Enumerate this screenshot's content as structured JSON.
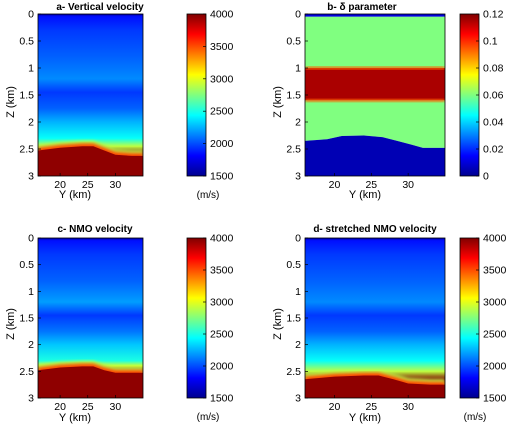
{
  "chart_data": [
    {
      "type": "heatmap",
      "title": "a- Vertical velocity",
      "xlabel": "Y (km)",
      "ylabel": "Z (km)",
      "xlim": [
        16,
        35
      ],
      "ylim": [
        0,
        3
      ],
      "x_ticks": [
        "20",
        "25",
        "30"
      ],
      "y_ticks": [
        "0",
        "0.5",
        "1",
        "1.5",
        "2",
        "2.5",
        "3"
      ],
      "colorbar": {
        "min": 1500,
        "max": 4000,
        "ticks": [
          "4000",
          "3500",
          "3000",
          "2500",
          "2000",
          "1500"
        ],
        "unit": "(m/s)"
      },
      "z_profile": [
        [
          0,
          1550
        ],
        [
          0.05,
          1850
        ],
        [
          0.3,
          1950
        ],
        [
          0.8,
          2050
        ],
        [
          1.2,
          2150
        ],
        [
          1.45,
          1950
        ],
        [
          1.75,
          2050
        ],
        [
          2.0,
          2250
        ],
        [
          2.3,
          2450
        ],
        [
          2.45,
          2900
        ],
        [
          2.6,
          4000
        ],
        [
          3.0,
          4000
        ]
      ],
      "high_velocity_top_km": [
        [
          16,
          2.5
        ],
        [
          20,
          2.45
        ],
        [
          24,
          2.42
        ],
        [
          26,
          2.42
        ],
        [
          28,
          2.5
        ],
        [
          30,
          2.58
        ],
        [
          33,
          2.6
        ],
        [
          35,
          2.6
        ]
      ]
    },
    {
      "type": "heatmap",
      "title": "b- δ parameter",
      "xlabel": "Y (km)",
      "ylabel": "Z (km)",
      "xlim": [
        16,
        35
      ],
      "ylim": [
        0,
        3
      ],
      "x_ticks": [
        "20",
        "25",
        "30"
      ],
      "y_ticks": [
        "0",
        "0.5",
        "1",
        "1.5",
        "2",
        "2.5",
        "3"
      ],
      "colorbar": {
        "min": 0,
        "max": 0.12,
        "ticks": [
          "0.12",
          "0.1",
          "0.08",
          "0.06",
          "0.04",
          "0.02",
          "0"
        ],
        "unit": ""
      },
      "layers": [
        {
          "z_top": 0,
          "z_bottom": 0.05,
          "value": 0.01
        },
        {
          "z_top": 0.05,
          "z_bottom": 1.0,
          "value": 0.06
        },
        {
          "z_top": 1.0,
          "z_bottom": 1.6,
          "value": 0.115
        },
        {
          "z_top": 1.6,
          "z_bottom": "boundary",
          "value": 0.06
        },
        {
          "z_top": "boundary",
          "z_bottom": 3.0,
          "value": 0.005
        }
      ],
      "boundary_km": [
        [
          16,
          2.35
        ],
        [
          19,
          2.32
        ],
        [
          21,
          2.26
        ],
        [
          24,
          2.25
        ],
        [
          26.5,
          2.28
        ],
        [
          28.5,
          2.35
        ],
        [
          30.5,
          2.42
        ],
        [
          32,
          2.48
        ],
        [
          35,
          2.48
        ]
      ]
    },
    {
      "type": "heatmap",
      "title": "c- NMO velocity",
      "xlabel": "Y (km)",
      "ylabel": "Z (km)",
      "xlim": [
        16,
        35
      ],
      "ylim": [
        0,
        3
      ],
      "x_ticks": [
        "20",
        "25",
        "30"
      ],
      "y_ticks": [
        "0",
        "0.5",
        "1",
        "1.5",
        "2",
        "2.5",
        "3"
      ],
      "colorbar": {
        "min": 1500,
        "max": 4000,
        "ticks": [
          "4000",
          "3500",
          "3000",
          "2500",
          "2000",
          "1500"
        ],
        "unit": "(m/s)"
      },
      "z_profile": [
        [
          0,
          1550
        ],
        [
          0.05,
          1850
        ],
        [
          0.3,
          1950
        ],
        [
          0.8,
          2050
        ],
        [
          1.2,
          2200
        ],
        [
          1.45,
          1950
        ],
        [
          1.75,
          2100
        ],
        [
          2.0,
          2300
        ],
        [
          2.3,
          2500
        ],
        [
          2.4,
          2950
        ],
        [
          2.5,
          4000
        ],
        [
          3.0,
          4000
        ]
      ],
      "high_velocity_top_km": [
        [
          16,
          2.45
        ],
        [
          20,
          2.4
        ],
        [
          24,
          2.38
        ],
        [
          26,
          2.38
        ],
        [
          28,
          2.45
        ],
        [
          30,
          2.5
        ],
        [
          33,
          2.5
        ],
        [
          35,
          2.5
        ]
      ]
    },
    {
      "type": "heatmap",
      "title": "d- stretched NMO velocity",
      "xlabel": "Y (km)",
      "ylabel": "Z (km)",
      "xlim": [
        16,
        35
      ],
      "ylim": [
        0,
        3
      ],
      "x_ticks": [
        "20",
        "25",
        "30"
      ],
      "y_ticks": [
        "0",
        "0.5",
        "1",
        "1.5",
        "2",
        "2.5",
        "3"
      ],
      "colorbar": {
        "min": 1500,
        "max": 4000,
        "ticks": [
          "4000",
          "3500",
          "3000",
          "2500",
          "2000",
          "1500"
        ],
        "unit": "(m/s)"
      },
      "z_profile": [
        [
          0,
          1550
        ],
        [
          0.05,
          1850
        ],
        [
          0.3,
          1950
        ],
        [
          0.8,
          2050
        ],
        [
          1.2,
          2150
        ],
        [
          1.45,
          1950
        ],
        [
          1.75,
          2050
        ],
        [
          2.0,
          2250
        ],
        [
          2.3,
          2450
        ],
        [
          2.5,
          2900
        ],
        [
          2.65,
          4000
        ],
        [
          3.0,
          4000
        ]
      ],
      "high_velocity_top_km": [
        [
          16,
          2.62
        ],
        [
          20,
          2.57
        ],
        [
          24,
          2.55
        ],
        [
          26,
          2.55
        ],
        [
          28,
          2.62
        ],
        [
          30,
          2.7
        ],
        [
          33,
          2.72
        ],
        [
          35,
          2.72
        ]
      ]
    }
  ]
}
